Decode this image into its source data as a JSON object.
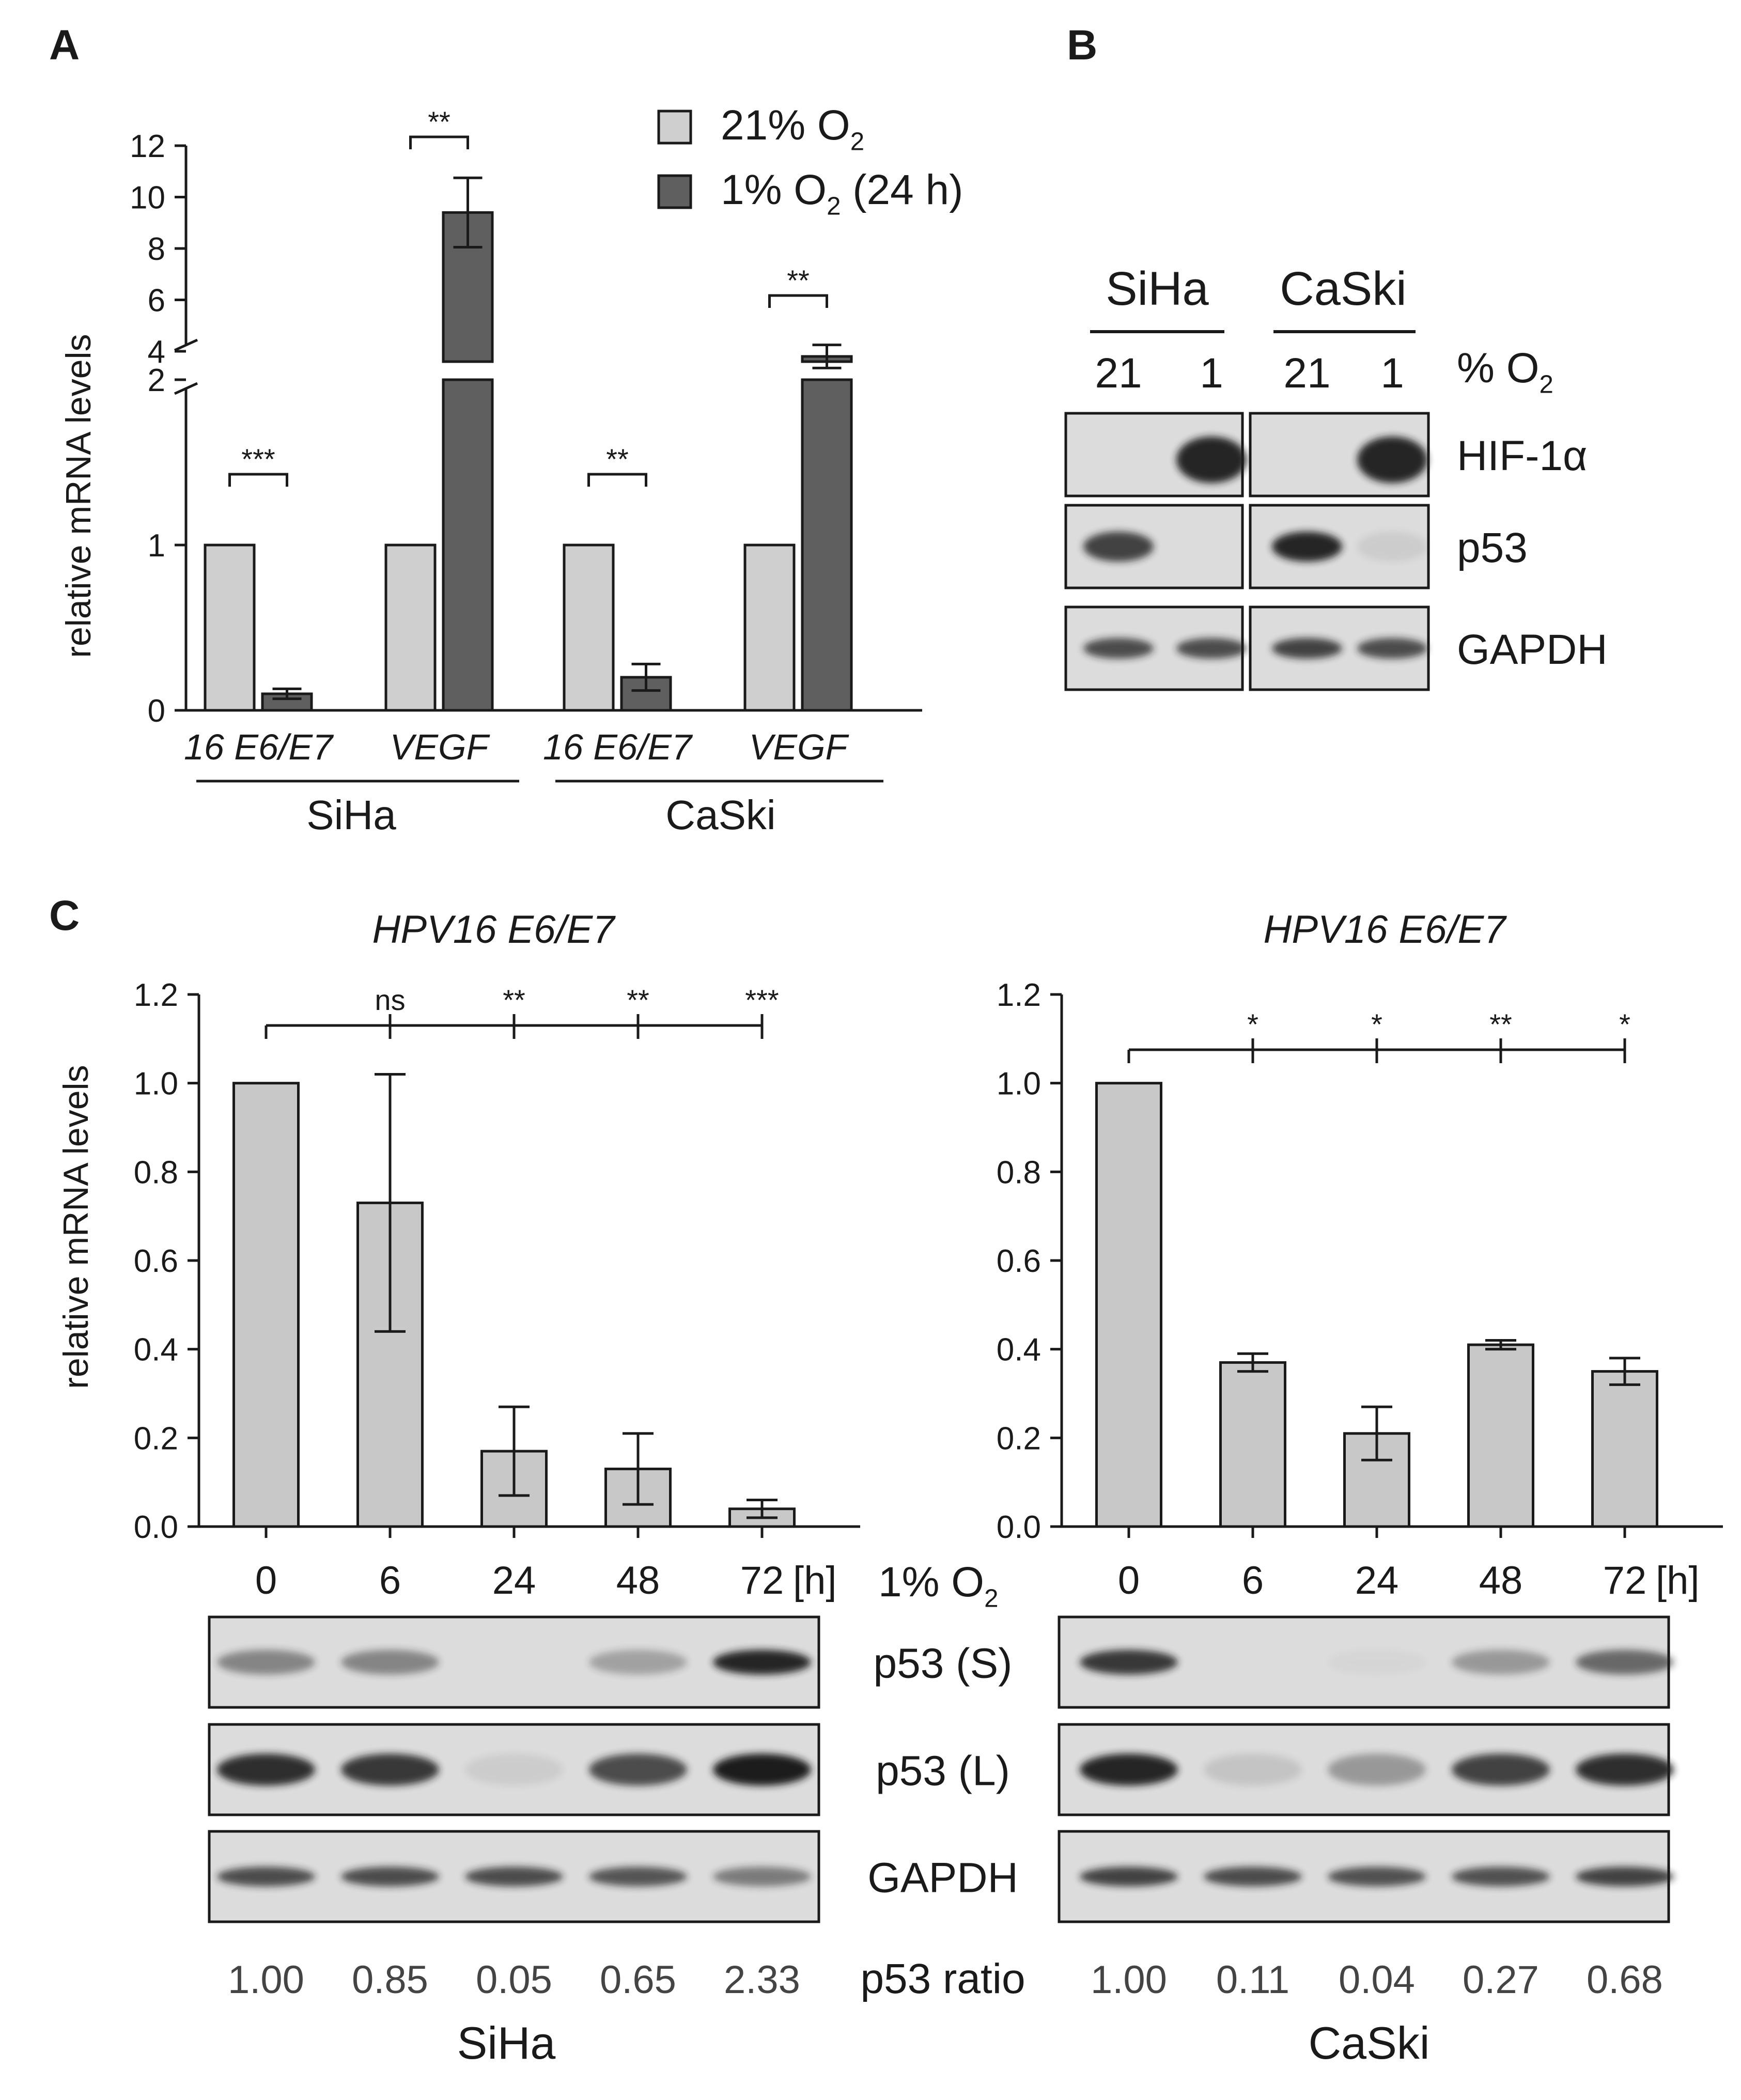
{
  "colors": {
    "bar_normoxia": "#cfcfcf",
    "bar_hypoxia": "#5f5f5f",
    "bar_c": "#c8c8c8",
    "blot_bg": "#dcdcdc",
    "band": "#1c1c1c",
    "ink": "#1a1a1a"
  },
  "panel_labels": {
    "a": "A",
    "b": "B",
    "c": "C"
  },
  "chart_data": [
    {
      "id": "A",
      "type": "bar",
      "ylabel": "relative mRNA levels",
      "ylim_lower": [
        0,
        2
      ],
      "ylim_upper": [
        4,
        12
      ],
      "yticks_lower": [
        0,
        1,
        2
      ],
      "yticks_upper": [
        4,
        6,
        8,
        10,
        12
      ],
      "legend": [
        {
          "label": "21% O",
          "sub": "2",
          "suffix": "",
          "color": "#cfcfcf"
        },
        {
          "label": "1% O",
          "sub": "2",
          "suffix": " (24 h)",
          "color": "#5f5f5f"
        }
      ],
      "categories": [
        "16 E6/E7",
        "VEGF",
        "16 E6/E7",
        "VEGF"
      ],
      "groups": [
        "SiHa",
        "CaSki"
      ],
      "series": [
        {
          "name": "21% O2",
          "values": [
            1,
            1,
            1,
            1
          ],
          "errors": [
            0,
            0,
            0,
            0
          ]
        },
        {
          "name": "1% O2 (24 h)",
          "values": [
            0.1,
            9.4,
            0.2,
            3.8
          ],
          "errors": [
            0.03,
            1.35,
            0.08,
            0.45
          ]
        }
      ],
      "significance": [
        "***",
        "**",
        "**",
        "**"
      ]
    },
    {
      "id": "C-SiHa",
      "type": "bar",
      "title": "HPV16 E6/E7",
      "ylabel": "relative mRNA levels",
      "ylim": [
        0,
        1.2
      ],
      "yticks": [
        "0.0",
        "0.2",
        "0.4",
        "0.6",
        "0.8",
        "1.0",
        "1.2"
      ],
      "categories": [
        "0",
        "6",
        "24",
        "48",
        "72"
      ],
      "unit": "[h]",
      "values": [
        1.0,
        0.73,
        0.17,
        0.13,
        0.04
      ],
      "errors": [
        0,
        0.29,
        0.1,
        0.08,
        0.02
      ],
      "significance": [
        "",
        "ns",
        "**",
        "**",
        "***"
      ]
    },
    {
      "id": "C-CaSki",
      "type": "bar",
      "title": "HPV16 E6/E7",
      "ylim": [
        0,
        1.2
      ],
      "yticks": [
        "0.0",
        "0.2",
        "0.4",
        "0.6",
        "0.8",
        "1.0",
        "1.2"
      ],
      "categories": [
        "0",
        "6",
        "24",
        "48",
        "72"
      ],
      "unit": "[h]",
      "values": [
        1.0,
        0.37,
        0.21,
        0.41,
        0.35
      ],
      "errors": [
        0,
        0.02,
        0.06,
        0.01,
        0.03
      ],
      "significance": [
        "",
        "*",
        "*",
        "**",
        "*"
      ]
    }
  ],
  "blot_b": {
    "cell_lines": [
      "SiHa",
      "CaSki"
    ],
    "lanes": [
      "21",
      "1",
      "21",
      "1"
    ],
    "o2_label": "% O",
    "o2_sub": "2",
    "rows": [
      "HIF-1α",
      "p53",
      "GAPDH"
    ],
    "intensity": [
      [
        0,
        0.95,
        0,
        0.95
      ],
      [
        0.8,
        0,
        0.95,
        0.08
      ],
      [
        0.75,
        0.75,
        0.8,
        0.75
      ]
    ]
  },
  "blot_c": {
    "condition_label": "1% O",
    "condition_sub": "2",
    "rows": [
      "p53 (S)",
      "p53 (L)",
      "GAPDH"
    ],
    "ratio_label": "p53 ratio",
    "siha": {
      "name": "SiHa",
      "ratios": [
        "1.00",
        "0.85",
        "0.05",
        "0.65",
        "2.33"
      ],
      "intensity": [
        [
          0.45,
          0.45,
          0,
          0.3,
          0.95
        ],
        [
          0.9,
          0.85,
          0.08,
          0.75,
          1.0
        ],
        [
          0.75,
          0.75,
          0.75,
          0.7,
          0.5
        ]
      ]
    },
    "caski": {
      "name": "CaSki",
      "ratios": [
        "1.00",
        "0.11",
        "0.04",
        "0.27",
        "0.68"
      ],
      "intensity": [
        [
          0.85,
          0,
          0.03,
          0.35,
          0.6
        ],
        [
          0.95,
          0.12,
          0.35,
          0.8,
          0.9
        ],
        [
          0.8,
          0.75,
          0.72,
          0.72,
          0.8
        ]
      ]
    }
  }
}
